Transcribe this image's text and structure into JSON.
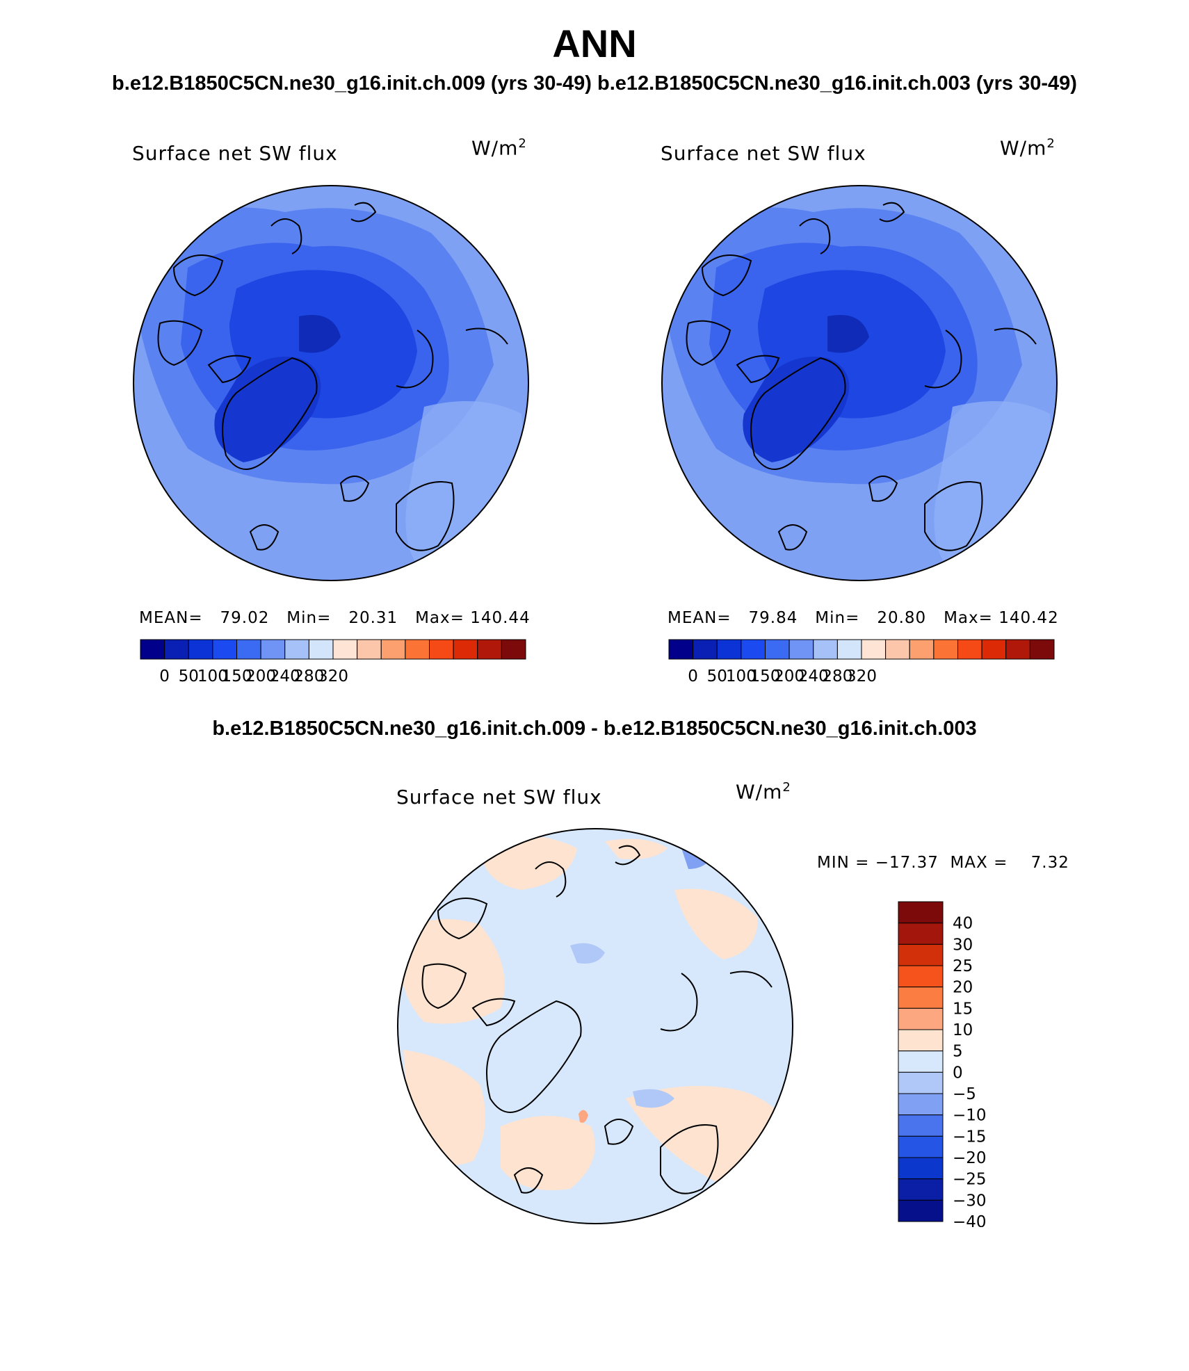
{
  "header": {
    "title": "ANN",
    "subtitle": "b.e12.B1850C5CN.ne30_g16.init.ch.009 (yrs 30-49) b.e12.B1850C5CN.ne30_g16.init.ch.003 (yrs 30-49)",
    "diff_title": "b.e12.B1850C5CN.ne30_g16.init.ch.009 - b.e12.B1850C5CN.ne30_g16.init.ch.003"
  },
  "panels": {
    "left": {
      "variable": "Surface net SW flux",
      "unit_base": "W/m",
      "unit_exp": "2",
      "stats": "MEAN=   79.02   Min=   20.31   Max= 140.44"
    },
    "right": {
      "variable": "Surface net SW flux",
      "unit_base": "W/m",
      "unit_exp": "2",
      "stats": "MEAN=   79.84   Min=   20.80   Max= 140.42"
    },
    "diff": {
      "variable": "Surface net SW flux",
      "unit_base": "W/m",
      "unit_exp": "2",
      "stats": "MIN = −17.37  MAX =    7.32"
    }
  },
  "colorbars": {
    "horizontal": {
      "colors": [
        "#00008b",
        "#0a1fb4",
        "#0b33d6",
        "#1a4af0",
        "#3b6bf2",
        "#6f94f5",
        "#a6c0f8",
        "#d3e5fb",
        "#fde4d4",
        "#fcc6ab",
        "#fca070",
        "#fb7436",
        "#f54a16",
        "#dc2a06",
        "#b0190a",
        "#7d0a0a"
      ],
      "tick_labels": [
        "0",
        "50",
        "100",
        "150",
        "200",
        "240",
        "280",
        "320"
      ]
    },
    "vertical": {
      "colors": [
        "#7d0a0a",
        "#a3160b",
        "#d2300a",
        "#f5531b",
        "#fb7d42",
        "#fca77f",
        "#fde3d0",
        "#d8e8fc",
        "#afc8f8",
        "#7fa0f3",
        "#4a73ee",
        "#2455e4",
        "#0b37cc",
        "#0a1fa5",
        "#05108a"
      ],
      "tick_labels": [
        "40",
        "30",
        "25",
        "20",
        "15",
        "10",
        "5",
        "0",
        "−5",
        "−10",
        "−15",
        "−20",
        "−25",
        "−30",
        "−40"
      ]
    }
  }
}
